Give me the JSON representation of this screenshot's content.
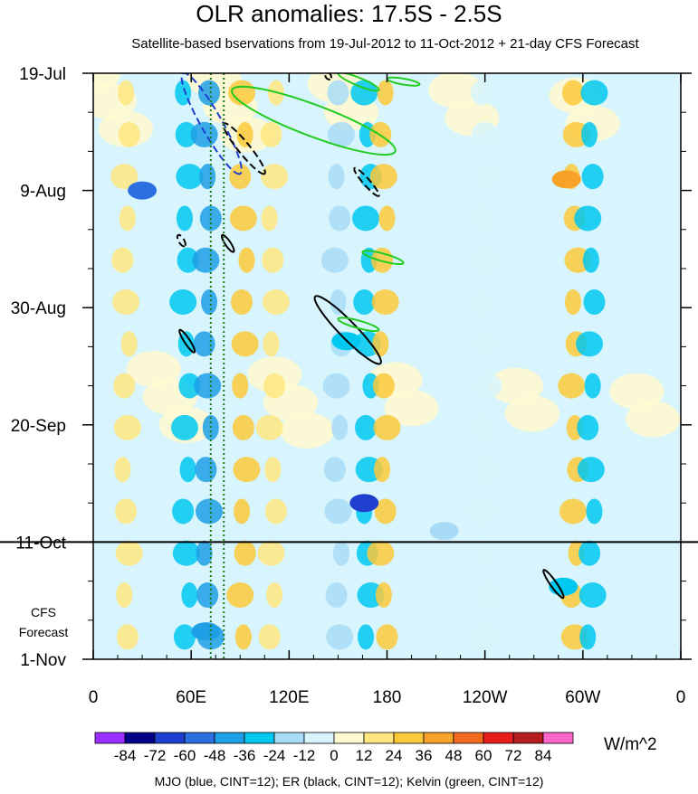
{
  "chart_data": {
    "type": "heatmap",
    "title": "OLR anomalies: 17.5S - 2.5S",
    "subtitle": "Satellite-based bservations from 19-Jul-2012 to 11-Oct-2012 + 21-day CFS Forecast",
    "x_ticks": [
      {
        "lon": 0,
        "label": "0"
      },
      {
        "lon": 60,
        "label": "60E"
      },
      {
        "lon": 120,
        "label": "120E"
      },
      {
        "lon": 180,
        "label": "180"
      },
      {
        "lon": 240,
        "label": "120W"
      },
      {
        "lon": 300,
        "label": "60W"
      },
      {
        "lon": 360,
        "label": "0"
      }
    ],
    "xlim": [
      0,
      360
    ],
    "y_ticks": [
      {
        "day": 0,
        "label": "19-Jul"
      },
      {
        "day": 21,
        "label": "9-Aug"
      },
      {
        "day": 42,
        "label": "30-Aug"
      },
      {
        "day": 63,
        "label": "20-Sep"
      },
      {
        "day": 84,
        "label": "11-Oct"
      },
      {
        "day": 105,
        "label": "1-Nov"
      }
    ],
    "ylim_days": [
      0,
      105
    ],
    "forecast_start_day": 84,
    "forecast_label": "CFS Forecast",
    "colorbar": {
      "levels": [
        "-84",
        "-72",
        "-60",
        "-48",
        "-36",
        "-24",
        "-12",
        "0",
        "12",
        "24",
        "36",
        "48",
        "60",
        "72",
        "84"
      ],
      "colors": [
        "#9b30ff",
        "#00008b",
        "#1f3fcf",
        "#2b6fe0",
        "#1e9fe6",
        "#00c8f0",
        "#a8dcf6",
        "#d8f4fc",
        "#fffad0",
        "#ffe680",
        "#fcc93a",
        "#f8a22a",
        "#f56a1e",
        "#e81e1e",
        "#b41e1e",
        "#ff66cc"
      ],
      "units": "W/m^2"
    },
    "bands": [
      {
        "lon": 57,
        "value": -30
      },
      {
        "lon": 70,
        "value": -42
      },
      {
        "lon": 92,
        "value": 28
      },
      {
        "lon": 110,
        "value": 16
      },
      {
        "lon": 150,
        "value": -24
      },
      {
        "lon": 168,
        "value": -30
      },
      {
        "lon": 178,
        "value": 24
      },
      {
        "lon": 295,
        "value": 30
      },
      {
        "lon": 305,
        "value": -30
      },
      {
        "lon": 20,
        "value": 14
      },
      {
        "lon": 240,
        "value": -10
      }
    ],
    "blobs": [
      {
        "lon": 215,
        "day": 82,
        "value": -24
      },
      {
        "lon": 288,
        "day": 92,
        "value": -36
      },
      {
        "lon": 69,
        "day": 100,
        "value": -48
      },
      {
        "lon": 155,
        "day": 48,
        "value": -36
      },
      {
        "lon": 30,
        "day": 21,
        "value": -60
      },
      {
        "lon": 290,
        "day": 19,
        "value": 36
      },
      {
        "lon": 166,
        "day": 77,
        "value": -72
      }
    ],
    "contours": [
      {
        "type": "MJO",
        "color": "#1f3fcf",
        "dash": true,
        "lon": [
          55,
          90
        ],
        "day": [
          0,
          18
        ]
      },
      {
        "type": "ER",
        "color": "#000000",
        "dash": true,
        "lon": [
          80,
          105
        ],
        "day": [
          9,
          18
        ]
      },
      {
        "type": "ER",
        "color": "#000000",
        "dash": true,
        "lon": [
          160,
          175
        ],
        "day": [
          17,
          22
        ]
      },
      {
        "type": "ER",
        "color": "#000000",
        "dash": true,
        "lon": [
          52,
          56
        ],
        "day": [
          29,
          31
        ]
      },
      {
        "type": "ER",
        "color": "#000000",
        "dash": false,
        "lon": [
          79,
          86
        ],
        "day": [
          29,
          32
        ]
      },
      {
        "type": "ER",
        "color": "#000000",
        "dash": false,
        "lon": [
          136,
          176
        ],
        "day": [
          40,
          52
        ]
      },
      {
        "type": "ER",
        "color": "#000000",
        "dash": false,
        "lon": [
          53,
          62
        ],
        "day": [
          46,
          50
        ]
      },
      {
        "type": "ER",
        "color": "#000000",
        "dash": false,
        "lon": [
          276,
          288
        ],
        "day": [
          89,
          94
        ]
      },
      {
        "type": "ER",
        "color": "#000000",
        "dash": true,
        "lon": [
          143,
          145
        ],
        "day": [
          0,
          1
        ]
      },
      {
        "type": "Kelvin",
        "color": "#22cc22",
        "dash": false,
        "lon": [
          85,
          185
        ],
        "day": [
          3,
          14
        ]
      },
      {
        "type": "Kelvin",
        "color": "#22cc22",
        "dash": false,
        "lon": [
          150,
          175
        ],
        "day": [
          0,
          3
        ]
      },
      {
        "type": "Kelvin",
        "color": "#22cc22",
        "dash": false,
        "lon": [
          180,
          200
        ],
        "day": [
          1,
          2
        ]
      },
      {
        "type": "Kelvin",
        "color": "#22cc22",
        "dash": false,
        "lon": [
          165,
          190
        ],
        "day": [
          32,
          34
        ]
      },
      {
        "type": "Kelvin",
        "color": "#22cc22",
        "dash": false,
        "lon": [
          150,
          175
        ],
        "day": [
          44,
          46
        ]
      }
    ],
    "vertical_dotted_lines_lon": [
      72,
      80
    ]
  },
  "footer": "MJO (blue, CINT=12); ER (black, CINT=12); Kelvin (green, CINT=12)"
}
